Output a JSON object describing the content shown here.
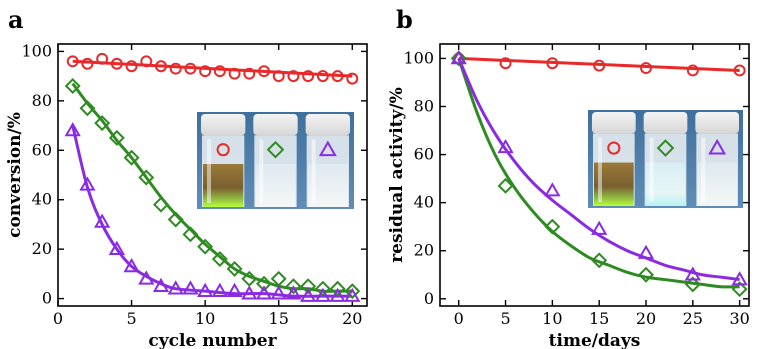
{
  "chart_data": [
    {
      "panel_label": "a",
      "type": "scatter",
      "xlabel": "cycle number",
      "ylabel": "conversion/%",
      "xlim": [
        0,
        21
      ],
      "ylim": [
        -3,
        103
      ],
      "xticks": [
        0,
        5,
        10,
        15,
        20
      ],
      "yticks": [
        0,
        20,
        40,
        60,
        80,
        100
      ],
      "grid": false,
      "series": [
        {
          "marker": "circle",
          "color": "#e8292a",
          "x": [
            1,
            2,
            3,
            4,
            5,
            6,
            7,
            8,
            9,
            10,
            11,
            12,
            13,
            14,
            15,
            16,
            17,
            18,
            19,
            20
          ],
          "y": [
            96,
            95,
            97,
            95,
            94,
            96,
            94,
            93,
            93,
            92,
            92,
            91,
            91,
            92,
            90,
            90,
            90,
            90,
            90,
            89
          ],
          "fit": {
            "x": [
              1,
              20
            ],
            "y": [
              96,
              90
            ]
          }
        },
        {
          "marker": "diamond",
          "color": "#2e8b22",
          "x": [
            1,
            2,
            3,
            4,
            5,
            6,
            7,
            8,
            9,
            10,
            11,
            12,
            13,
            14,
            15,
            16,
            17,
            18,
            19,
            20
          ],
          "y": [
            86,
            77,
            71,
            65,
            57,
            49,
            38,
            32,
            26,
            21,
            16,
            12,
            8,
            6,
            8,
            5,
            5,
            4,
            4,
            3
          ],
          "fit": {
            "x": [
              1,
              2,
              3,
              4,
              5,
              6,
              7,
              8,
              9,
              10,
              11,
              12,
              13,
              14,
              15,
              16,
              17,
              18,
              19,
              20
            ],
            "y": [
              87,
              79,
              72,
              64,
              57,
              49,
              41,
              34,
              28,
              22,
              17,
              12,
              9,
              7,
              5,
              4,
              4,
              3,
              3,
              3
            ]
          }
        },
        {
          "marker": "triangle",
          "color": "#8a2be2",
          "x": [
            1,
            2,
            3,
            4,
            5,
            6,
            7,
            8,
            9,
            10,
            11,
            12,
            13,
            14,
            15,
            16,
            17,
            18,
            19,
            20
          ],
          "y": [
            68,
            46,
            31,
            20,
            13,
            8,
            5,
            4,
            4,
            3,
            3,
            3,
            2,
            2,
            2,
            2,
            1,
            1,
            1,
            1
          ],
          "fit": {
            "x": [
              1,
              2,
              3,
              4,
              5,
              6,
              7,
              8,
              10,
              12,
              14,
              16,
              18,
              20
            ],
            "y": [
              70,
              45,
              30,
              20,
              13,
              9,
              6,
              4,
              3,
              2,
              2,
              1,
              1,
              1
            ]
          }
        }
      ],
      "inset_photo": {
        "vial_symbols": [
          "circle",
          "diamond",
          "triangle"
        ]
      }
    },
    {
      "panel_label": "b",
      "type": "scatter",
      "xlabel": "time/days",
      "ylabel": "residual activity/%",
      "xlim": [
        -2,
        31
      ],
      "ylim": [
        -3,
        106
      ],
      "xticks": [
        0,
        5,
        10,
        15,
        20,
        25,
        30
      ],
      "yticks": [
        0,
        20,
        40,
        60,
        80,
        100
      ],
      "grid": false,
      "series": [
        {
          "marker": "circle",
          "color": "#e8292a",
          "x": [
            0,
            5,
            10,
            15,
            20,
            25,
            30
          ],
          "y": [
            100,
            98,
            98,
            97,
            96,
            95,
            95
          ],
          "fit": {
            "x": [
              0,
              30
            ],
            "y": [
              100,
              95
            ]
          }
        },
        {
          "marker": "diamond",
          "color": "#2e8b22",
          "x": [
            0,
            5,
            10,
            15,
            20,
            25,
            30
          ],
          "y": [
            100,
            47,
            30,
            16,
            10,
            6,
            4
          ],
          "fit": {
            "x": [
              0,
              2,
              4,
              6,
              8,
              10,
              12,
              14,
              16,
              18,
              20,
              22,
              24,
              26,
              28,
              30
            ],
            "y": [
              100,
              77,
              59,
              46,
              36,
              28,
              22,
              17,
              14,
              11,
              9,
              8,
              7,
              6,
              5,
              5
            ]
          }
        },
        {
          "marker": "triangle",
          "color": "#8a2be2",
          "x": [
            0,
            5,
            10,
            15,
            20,
            25,
            30
          ],
          "y": [
            100,
            63,
            45,
            29,
            19,
            10,
            8
          ],
          "fit": {
            "x": [
              0,
              2,
              4,
              6,
              8,
              10,
              12,
              14,
              16,
              18,
              20,
              22,
              24,
              26,
              28,
              30
            ],
            "y": [
              100,
              82,
              68,
              57,
              48,
              41,
              35,
              29,
              24,
              20,
              17,
              14,
              12,
              10,
              9,
              8
            ]
          }
        }
      ],
      "inset_photo": {
        "vial_symbols": [
          "circle",
          "diamond",
          "triangle"
        ]
      }
    }
  ]
}
